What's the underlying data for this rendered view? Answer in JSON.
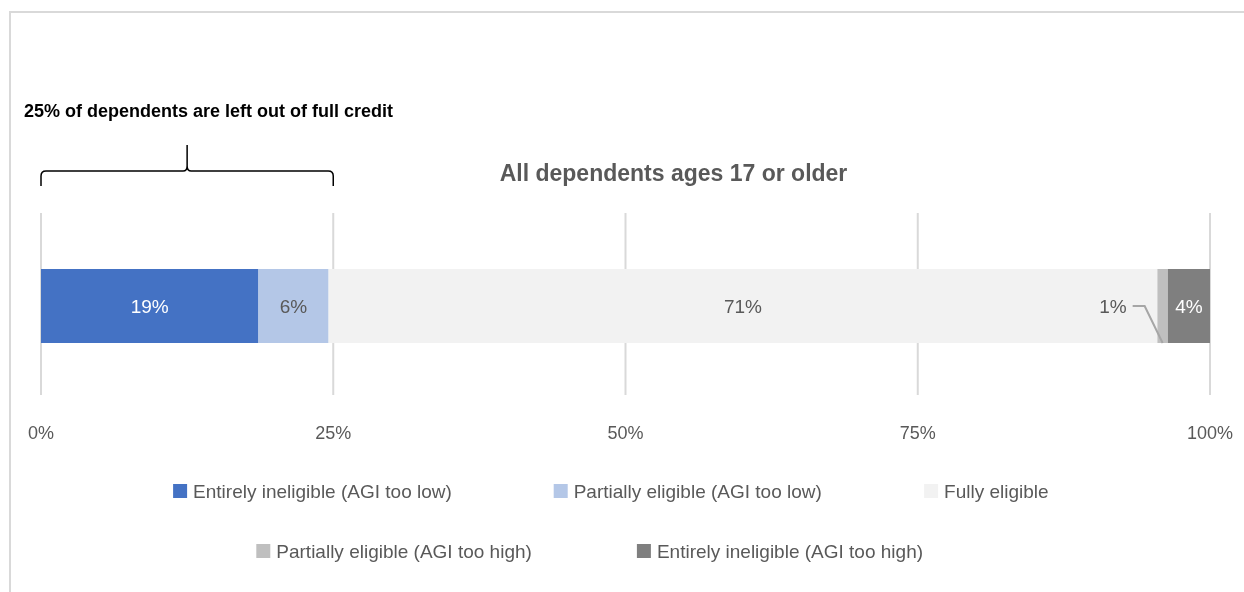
{
  "chart_data": {
    "type": "bar",
    "orientation": "horizontal",
    "stacked": true,
    "title": "All dependents ages 17 or older",
    "categories": [
      null
    ],
    "series": [
      {
        "name": "Entirely ineligible (AGI too low)",
        "color": "#4472c4",
        "values": [
          18.6
        ]
      },
      {
        "name": "Partially eligible (AGI too low)",
        "color": "#b4c7e7",
        "values": [
          6.0
        ]
      },
      {
        "name": "Fully eligible",
        "color": "#f2f2f2",
        "values": [
          70.9
        ]
      },
      {
        "name": "Partially eligible (AGI too high)",
        "color": "#bfbfbf",
        "values": [
          0.9
        ]
      },
      {
        "name": "Entirely ineligible (AGI too high)",
        "color": "#7f7f7f",
        "values": [
          3.6
        ]
      }
    ],
    "value_labels": [
      [
        "19%"
      ],
      [
        "6%"
      ],
      [
        "71%"
      ],
      [
        "1%"
      ],
      [
        "4%"
      ]
    ],
    "xlim": [
      0,
      100
    ],
    "xticks": [
      {
        "value": 0,
        "label": "0%"
      },
      {
        "value": 25,
        "label": "25%"
      },
      {
        "value": 50,
        "label": "50%"
      },
      {
        "value": 75,
        "label": "75%"
      },
      {
        "value": 100,
        "label": "100%"
      }
    ],
    "grid": "x",
    "legend": "bottom",
    "annotations": [
      "25% of dependents are left out of full credit"
    ]
  }
}
